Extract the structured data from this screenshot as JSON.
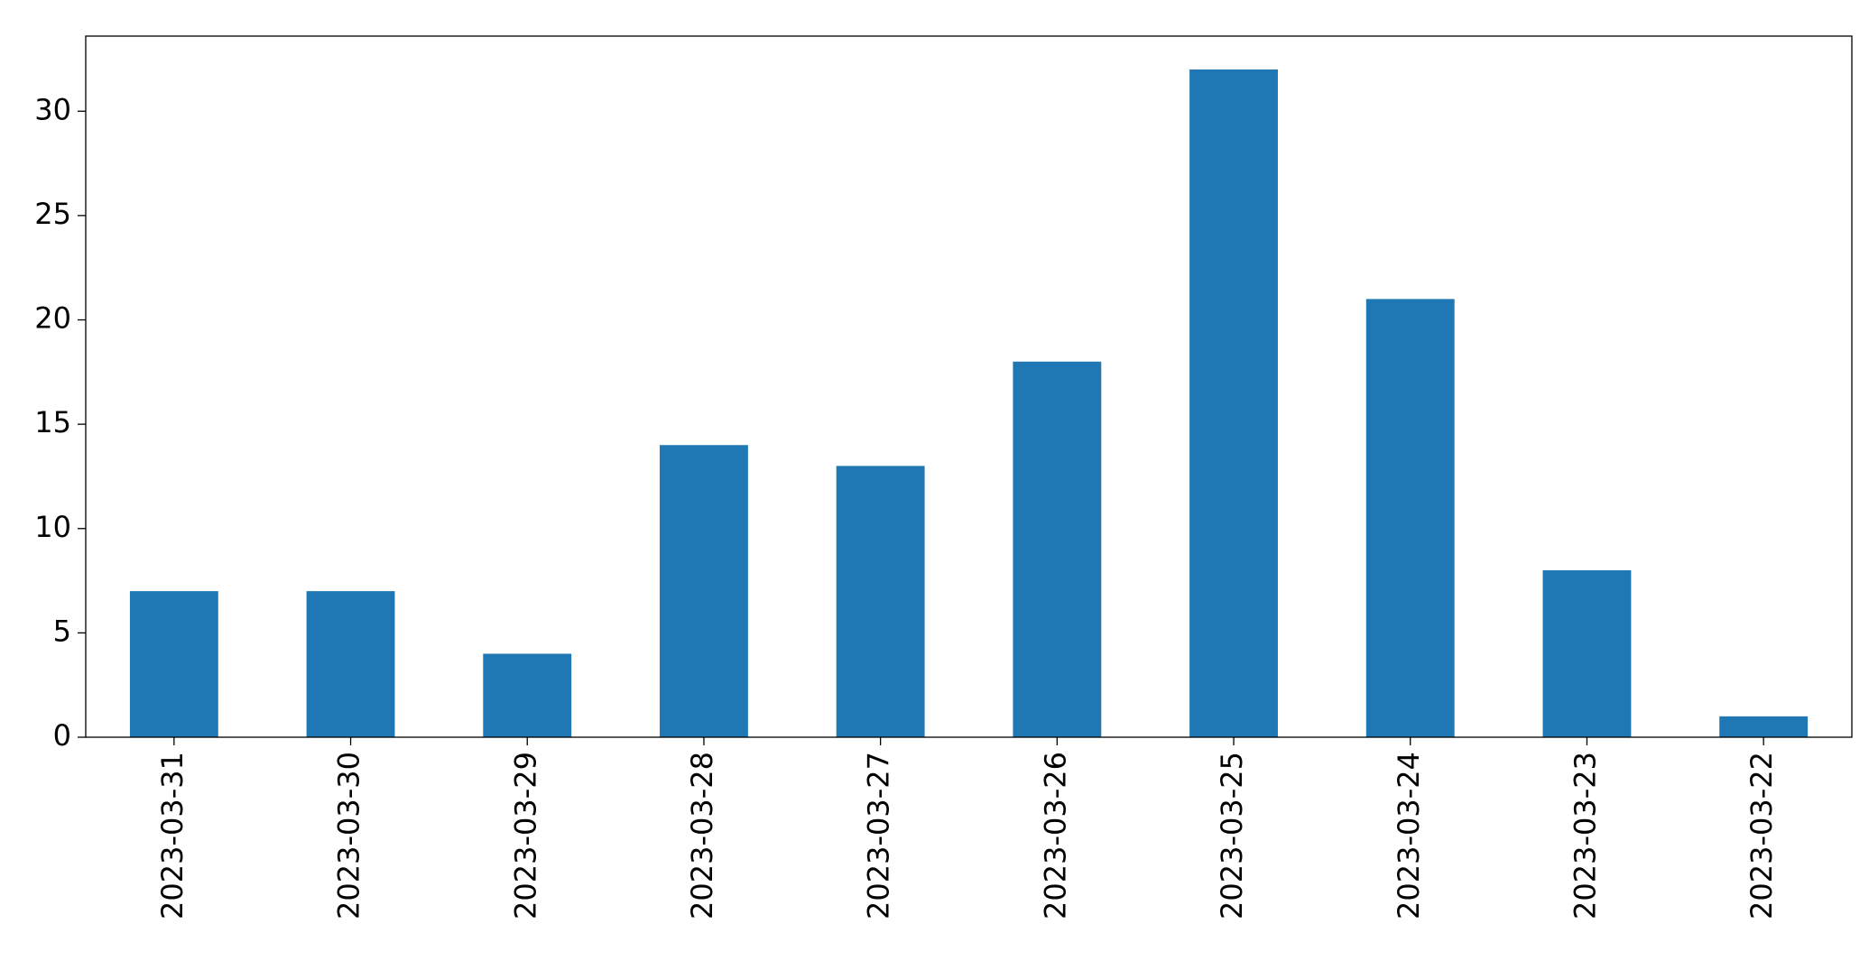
{
  "chart_data": {
    "type": "bar",
    "categories": [
      "2023-03-31",
      "2023-03-30",
      "2023-03-29",
      "2023-03-28",
      "2023-03-27",
      "2023-03-26",
      "2023-03-25",
      "2023-03-24",
      "2023-03-23",
      "2023-03-22"
    ],
    "values": [
      7,
      7,
      4,
      14,
      13,
      18,
      32,
      21,
      8,
      1
    ],
    "color": "#1f77b4",
    "ylim": [
      0,
      33.6
    ],
    "yticks": [
      0,
      5,
      10,
      15,
      20,
      25,
      30
    ],
    "grid": false
  }
}
